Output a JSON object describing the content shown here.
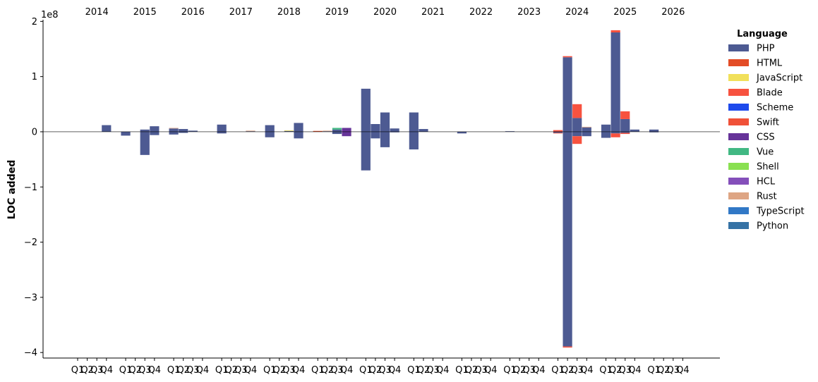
{
  "chart_data": {
    "type": "bar",
    "stacked": true,
    "diverging": true,
    "ylabel": "LOC added",
    "y_offset_label": "1e8",
    "y_unit_multiplier": 100000000,
    "ylim": [
      -4.1,
      2.03
    ],
    "yticks": [
      2,
      1,
      0,
      -1,
      -2,
      -3,
      -4
    ],
    "ytick_labels": [
      "2",
      "1",
      "0",
      "−1",
      "−2",
      "−3",
      "−4"
    ],
    "years": [
      "2014",
      "2015",
      "2016",
      "2017",
      "2018",
      "2019",
      "2020",
      "2021",
      "2022",
      "2023",
      "2024",
      "2025",
      "2026"
    ],
    "quarter_labels": [
      "Q1",
      "Q2",
      "Q3",
      "Q4"
    ],
    "grid": false,
    "zero_line": true,
    "legend": {
      "title": "Language",
      "placement": "right",
      "entries": [
        {
          "name": "PHP",
          "color": "#4d5a92"
        },
        {
          "name": "HTML",
          "color": "#e34c26"
        },
        {
          "name": "JavaScript",
          "color": "#f1e05a"
        },
        {
          "name": "Blade",
          "color": "#f7523f"
        },
        {
          "name": "Scheme",
          "color": "#1e4aec"
        },
        {
          "name": "Swift",
          "color": "#f05138"
        },
        {
          "name": "CSS",
          "color": "#663399"
        },
        {
          "name": "Vue",
          "color": "#41b883"
        },
        {
          "name": "Shell",
          "color": "#89e051"
        },
        {
          "name": "HCL",
          "color": "#844fba"
        },
        {
          "name": "Rust",
          "color": "#dea584"
        },
        {
          "name": "TypeScript",
          "color": "#3178c6"
        },
        {
          "name": "Python",
          "color": "#3572a5"
        }
      ]
    },
    "bars": [
      {
        "year": "2014",
        "quarter": "Q4",
        "segments": [
          {
            "lang": "PHP",
            "value": 0.12
          }
        ]
      },
      {
        "year": "2015",
        "quarter": "Q1",
        "segments": [
          {
            "lang": "PHP",
            "value": -0.07
          }
        ]
      },
      {
        "year": "2015",
        "quarter": "Q3",
        "segments": [
          {
            "lang": "PHP",
            "value": 0.04
          },
          {
            "lang": "PHP",
            "value": -0.42
          }
        ]
      },
      {
        "year": "2015",
        "quarter": "Q4",
        "segments": [
          {
            "lang": "PHP",
            "value": 0.1
          },
          {
            "lang": "PHP",
            "value": -0.06
          }
        ]
      },
      {
        "year": "2016",
        "quarter": "Q1",
        "segments": [
          {
            "lang": "PHP",
            "value": 0.06
          },
          {
            "lang": "Rust",
            "value": 0.01
          },
          {
            "lang": "PHP",
            "value": -0.05
          }
        ]
      },
      {
        "year": "2016",
        "quarter": "Q2",
        "segments": [
          {
            "lang": "PHP",
            "value": 0.05
          },
          {
            "lang": "PHP",
            "value": -0.02
          }
        ]
      },
      {
        "year": "2016",
        "quarter": "Q3",
        "segments": [
          {
            "lang": "PHP",
            "value": 0.02
          }
        ]
      },
      {
        "year": "2017",
        "quarter": "Q1",
        "segments": [
          {
            "lang": "PHP",
            "value": 0.13
          },
          {
            "lang": "PHP",
            "value": -0.03
          }
        ]
      },
      {
        "year": "2017",
        "quarter": "Q4",
        "segments": [
          {
            "lang": "PHP",
            "value": 0.01
          },
          {
            "lang": "Rust",
            "value": 0.01
          }
        ]
      },
      {
        "year": "2018",
        "quarter": "Q1",
        "segments": [
          {
            "lang": "PHP",
            "value": 0.12
          },
          {
            "lang": "PHP",
            "value": -0.1
          }
        ]
      },
      {
        "year": "2018",
        "quarter": "Q3",
        "segments": [
          {
            "lang": "PHP",
            "value": 0.015
          },
          {
            "lang": "JavaScript",
            "value": 0.01
          }
        ]
      },
      {
        "year": "2018",
        "quarter": "Q4",
        "segments": [
          {
            "lang": "PHP",
            "value": 0.16
          },
          {
            "lang": "PHP",
            "value": -0.12
          }
        ]
      },
      {
        "year": "2019",
        "quarter": "Q1",
        "segments": [
          {
            "lang": "HTML",
            "value": 0.015
          }
        ]
      },
      {
        "year": "2019",
        "quarter": "Q2",
        "segments": [
          {
            "lang": "PHP",
            "value": 0.01
          },
          {
            "lang": "Rust",
            "value": 0.01
          }
        ]
      },
      {
        "year": "2019",
        "quarter": "Q3",
        "segments": [
          {
            "lang": "PHP",
            "value": 0.04
          },
          {
            "lang": "Vue",
            "value": 0.03
          },
          {
            "lang": "PHP",
            "value": -0.04
          }
        ]
      },
      {
        "year": "2019",
        "quarter": "Q4",
        "segments": [
          {
            "lang": "CSS",
            "value": 0.07
          },
          {
            "lang": "CSS",
            "value": -0.08
          }
        ]
      },
      {
        "year": "2020",
        "quarter": "Q1",
        "segments": [
          {
            "lang": "PHP",
            "value": 0.78
          },
          {
            "lang": "PHP",
            "value": -0.7
          }
        ]
      },
      {
        "year": "2020",
        "quarter": "Q2",
        "segments": [
          {
            "lang": "PHP",
            "value": 0.14
          },
          {
            "lang": "PHP",
            "value": -0.12
          }
        ]
      },
      {
        "year": "2020",
        "quarter": "Q3",
        "segments": [
          {
            "lang": "PHP",
            "value": 0.35
          },
          {
            "lang": "PHP",
            "value": -0.28
          }
        ]
      },
      {
        "year": "2020",
        "quarter": "Q4",
        "segments": [
          {
            "lang": "PHP",
            "value": 0.06
          },
          {
            "lang": "PHP",
            "value": -0.01
          }
        ]
      },
      {
        "year": "2021",
        "quarter": "Q1",
        "segments": [
          {
            "lang": "PHP",
            "value": 0.35
          },
          {
            "lang": "PHP",
            "value": -0.32
          }
        ]
      },
      {
        "year": "2021",
        "quarter": "Q2",
        "segments": [
          {
            "lang": "PHP",
            "value": 0.05
          }
        ]
      },
      {
        "year": "2022",
        "quarter": "Q1",
        "segments": [
          {
            "lang": "PHP",
            "value": -0.03
          }
        ]
      },
      {
        "year": "2023",
        "quarter": "Q1",
        "segments": [
          {
            "lang": "PHP",
            "value": 0.01
          }
        ]
      },
      {
        "year": "2024",
        "quarter": "Q1",
        "segments": [
          {
            "lang": "Blade",
            "value": 0.03
          },
          {
            "lang": "PHP",
            "value": -0.02
          },
          {
            "lang": "Blade",
            "value": -0.01
          }
        ]
      },
      {
        "year": "2024",
        "quarter": "Q2",
        "segments": [
          {
            "lang": "PHP",
            "value": 1.35
          },
          {
            "lang": "Blade",
            "value": 0.02
          },
          {
            "lang": "PHP",
            "value": -3.89
          },
          {
            "lang": "Blade",
            "value": -0.02
          }
        ]
      },
      {
        "year": "2024",
        "quarter": "Q3",
        "segments": [
          {
            "lang": "PHP",
            "value": 0.25
          },
          {
            "lang": "Blade",
            "value": 0.25
          },
          {
            "lang": "PHP",
            "value": -0.08
          },
          {
            "lang": "Blade",
            "value": -0.14
          }
        ]
      },
      {
        "year": "2024",
        "quarter": "Q4",
        "segments": [
          {
            "lang": "PHP",
            "value": 0.08
          },
          {
            "lang": "Rust",
            "value": 0.01
          },
          {
            "lang": "PHP",
            "value": -0.08
          }
        ]
      },
      {
        "year": "2025",
        "quarter": "Q1",
        "segments": [
          {
            "lang": "PHP",
            "value": 0.13
          },
          {
            "lang": "PHP",
            "value": -0.11
          }
        ]
      },
      {
        "year": "2025",
        "quarter": "Q2",
        "segments": [
          {
            "lang": "PHP",
            "value": 1.8
          },
          {
            "lang": "Blade",
            "value": 0.04
          },
          {
            "lang": "PHP",
            "value": -0.03
          },
          {
            "lang": "Blade",
            "value": -0.07
          }
        ]
      },
      {
        "year": "2025",
        "quarter": "Q3",
        "segments": [
          {
            "lang": "PHP",
            "value": 0.23
          },
          {
            "lang": "Blade",
            "value": 0.14
          },
          {
            "lang": "PHP",
            "value": -0.02
          },
          {
            "lang": "Blade",
            "value": -0.02
          }
        ]
      },
      {
        "year": "2025",
        "quarter": "Q4",
        "segments": [
          {
            "lang": "PHP",
            "value": 0.04
          }
        ]
      },
      {
        "year": "2026",
        "quarter": "Q1",
        "segments": [
          {
            "lang": "PHP",
            "value": 0.04
          },
          {
            "lang": "PHP",
            "value": -0.01
          }
        ]
      }
    ]
  }
}
